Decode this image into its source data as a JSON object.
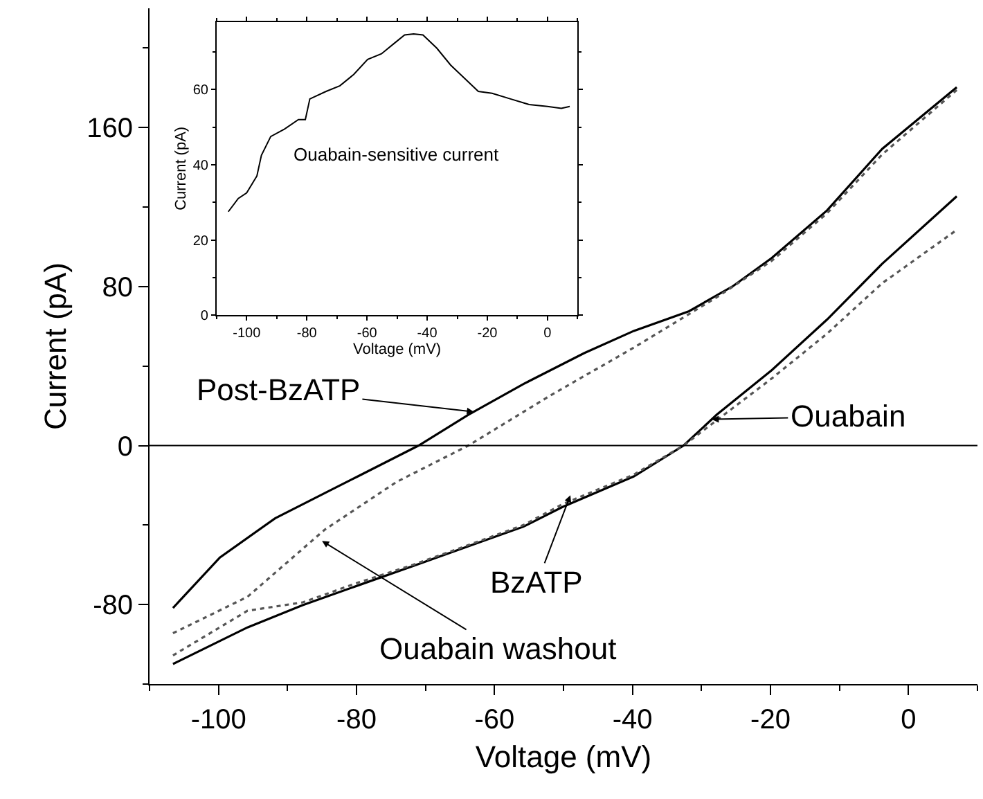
{
  "chart_data": [
    {
      "type": "line",
      "xlabel": "Voltage (mV)",
      "ylabel": "Current (pA)",
      "xlim": [
        -110,
        10
      ],
      "xticks": [
        -100,
        -80,
        -60,
        -40,
        -20,
        0
      ],
      "ylim": [
        -120,
        220
      ],
      "yticks": [
        -80,
        0,
        80,
        160
      ],
      "marker": "none",
      "series": [
        {
          "color": "#000000",
          "line_style": "solid",
          "x": [
            -106.6,
            -99.8,
            -91.8,
            -83.8,
            -79.8,
            -71,
            -63.8,
            -55.8,
            -47,
            -39.8,
            -31.8,
            -25.4,
            -19.8,
            -11.8,
            -3.8,
            7
          ],
          "values": [
            -81.7,
            -56.3,
            -36.6,
            -22.5,
            -15.5,
            0,
            15.5,
            31,
            46.5,
            57.7,
            67.6,
            80.3,
            94.4,
            118.3,
            149.3,
            180.3
          ]
        },
        {
          "color": "#555555",
          "line_style": "dotted",
          "x": [
            -106.6,
            -95.8,
            -84.6,
            -74.2,
            -63.8,
            -51.8,
            -39.8,
            -27.8,
            -19.8,
            -11.8,
            -3.8,
            7
          ],
          "values": [
            -94.4,
            -76.1,
            -42.3,
            -18.3,
            0,
            25.4,
            49.3,
            74.6,
            93,
            116.9,
            146.5,
            178.9
          ]
        },
        {
          "color": "#000000",
          "line_style": "solid",
          "x": [
            -106.6,
            -95.8,
            -87.8,
            -79.8,
            -71.8,
            -63.8,
            -55.8,
            -50.2,
            -39.8,
            -32.6,
            -27.8,
            -19.8,
            -11.8,
            -3.8,
            7
          ],
          "values": [
            -109.9,
            -91.5,
            -80.3,
            -70.4,
            -60.6,
            -50.7,
            -40.8,
            -31,
            -15.5,
            0,
            15.5,
            38,
            63.4,
            91.5,
            125.4
          ]
        },
        {
          "color": "#555555",
          "line_style": "dotted",
          "x": [
            -106.6,
            -95.8,
            -87.8,
            -79.8,
            -71.8,
            -63.8,
            -55.8,
            -50.2,
            -39.8,
            -32.6,
            -27.8,
            -19.8,
            -11.8,
            -3.8,
            7
          ],
          "values": [
            -105.6,
            -83.1,
            -78.9,
            -69,
            -60,
            -50.1,
            -40,
            -29.6,
            -14.6,
            0,
            12.7,
            33.8,
            56.3,
            81.7,
            108.5
          ]
        }
      ],
      "ref_lines": [
        {
          "axis": "y",
          "value": 0,
          "color": "#000000",
          "line_style": "solid"
        }
      ],
      "annotations": [
        {
          "text": "Post-BzATP",
          "x": -63,
          "y": 17
        },
        {
          "text": "Ouabain",
          "x": -28.5,
          "y": 13.2
        },
        {
          "text": "BzATP",
          "x": -49,
          "y": -25
        },
        {
          "text": "Ouabain washout",
          "x": -85,
          "y": -48
        }
      ]
    },
    {
      "type": "line",
      "xlabel": "Voltage (mV)",
      "ylabel": "Current (pA)",
      "xlim": [
        -110,
        10
      ],
      "xticks": [
        -100,
        -80,
        -60,
        -40,
        -20,
        0
      ],
      "ylim": [
        0,
        78
      ],
      "yticks": [
        0,
        20,
        40,
        60
      ],
      "marker": "none",
      "series": [
        {
          "color": "#000000",
          "line_style": "solid",
          "x": [
            -106.1,
            -102.8,
            -100,
            -96.6,
            -95.1,
            -92,
            -87.4,
            -82.8,
            -80.5,
            -79,
            -73.6,
            -69,
            -64.4,
            -59.8,
            -55.2,
            -50.6,
            -47.5,
            -44.5,
            -41.4,
            -36.8,
            -32.2,
            -27.6,
            -23,
            -18.4,
            -12.3,
            -6.1,
            0,
            4.6,
            7.4
          ],
          "values": [
            27.5,
            31,
            32.5,
            37,
            42.5,
            47.5,
            49.5,
            52,
            52,
            57.5,
            59.5,
            61,
            64,
            68,
            69.5,
            72.5,
            74.5,
            74.8,
            74.5,
            71,
            66.5,
            63,
            59.5,
            59,
            57.5,
            56,
            55.5,
            55,
            55.5
          ]
        }
      ],
      "annotations": [
        "Ouabain-sensitive current"
      ]
    }
  ]
}
